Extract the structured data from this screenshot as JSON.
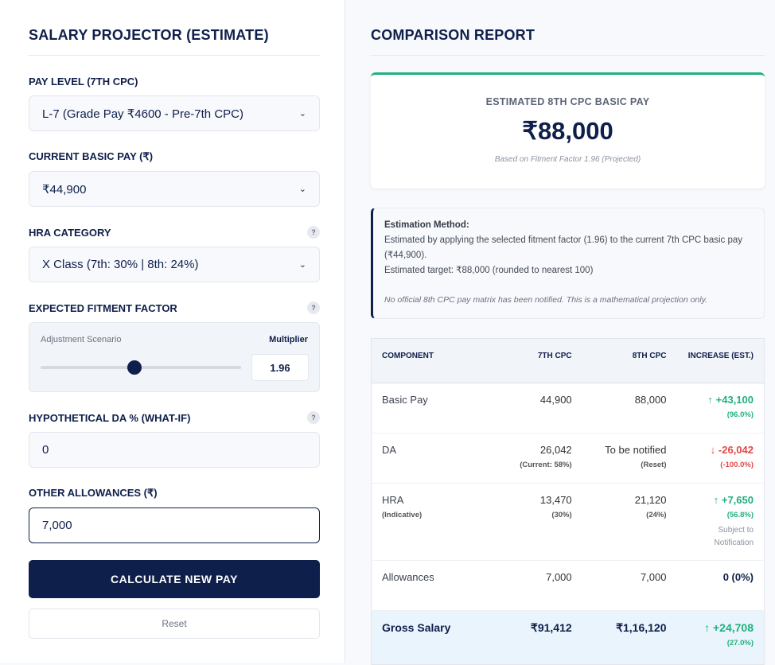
{
  "left": {
    "title": "SALARY PROJECTOR (ESTIMATE)",
    "pay_level": {
      "label": "PAY LEVEL (7TH CPC)",
      "value": "L-7 (Grade Pay ₹4600 - Pre-7th CPC)"
    },
    "basic_pay": {
      "label": "CURRENT BASIC PAY (₹)",
      "value": "₹44,900"
    },
    "hra": {
      "label": "HRA CATEGORY",
      "value": "X Class (7th: 30% | 8th: 24%)"
    },
    "fitment": {
      "label": "EXPECTED FITMENT FACTOR",
      "scenario": "Adjustment Scenario",
      "multiplier_label": "Multiplier",
      "value": "1.96",
      "slider_fraction": 0.47
    },
    "da": {
      "label": "HYPOTHETICAL DA % (WHAT-IF)",
      "value": "0"
    },
    "allowances": {
      "label": "OTHER ALLOWANCES (₹)",
      "value": "7,000"
    },
    "help": "?",
    "calculate": "CALCULATE NEW PAY",
    "reset": "Reset"
  },
  "right": {
    "title": "COMPARISON REPORT",
    "card": {
      "title": "ESTIMATED 8TH CPC BASIC PAY",
      "value": "₹88,000",
      "note": "Based on Fitment Factor 1.96 (Projected)"
    },
    "method": {
      "heading": "Estimation Method:",
      "line1": "Estimated by applying the selected fitment factor (1.96) to the current 7th CPC basic pay (₹44,900).",
      "line2": "Estimated target: ₹88,000 (rounded to nearest 100)",
      "disclaimer": "No official 8th CPC pay matrix has been notified. This is a mathematical projection only."
    },
    "table": {
      "headers": [
        "COMPONENT",
        "7TH CPC",
        "8TH CPC",
        "INCREASE (EST.)"
      ],
      "rows": [
        {
          "name": "Basic Pay",
          "c7": "44,900",
          "c8": "88,000",
          "inc": "↑ +43,100",
          "pct": "(96.0%)"
        },
        {
          "name": "DA",
          "c7": "26,042",
          "c7sub": "(Current: 58%)",
          "c8": "To be notified",
          "c8sub": "(Reset)",
          "inc": "↓ -26,042",
          "pct": "(-100.0%)"
        },
        {
          "name": "HRA",
          "namesub": "(Indicative)",
          "c7": "13,470",
          "c7sub": "(30%)",
          "c8": "21,120",
          "c8sub": "(24%)",
          "inc": "↑ +7,650",
          "pct": "(56.8%)",
          "note": "Subject to Notification"
        },
        {
          "name": "Allowances",
          "c7": "7,000",
          "c8": "7,000",
          "inc": "0 (0%)"
        },
        {
          "name": "Gross Salary",
          "c7": "₹91,412",
          "c8": "₹1,16,120",
          "inc": "↑ +24,708",
          "pct": "(27.0%)"
        }
      ]
    }
  }
}
